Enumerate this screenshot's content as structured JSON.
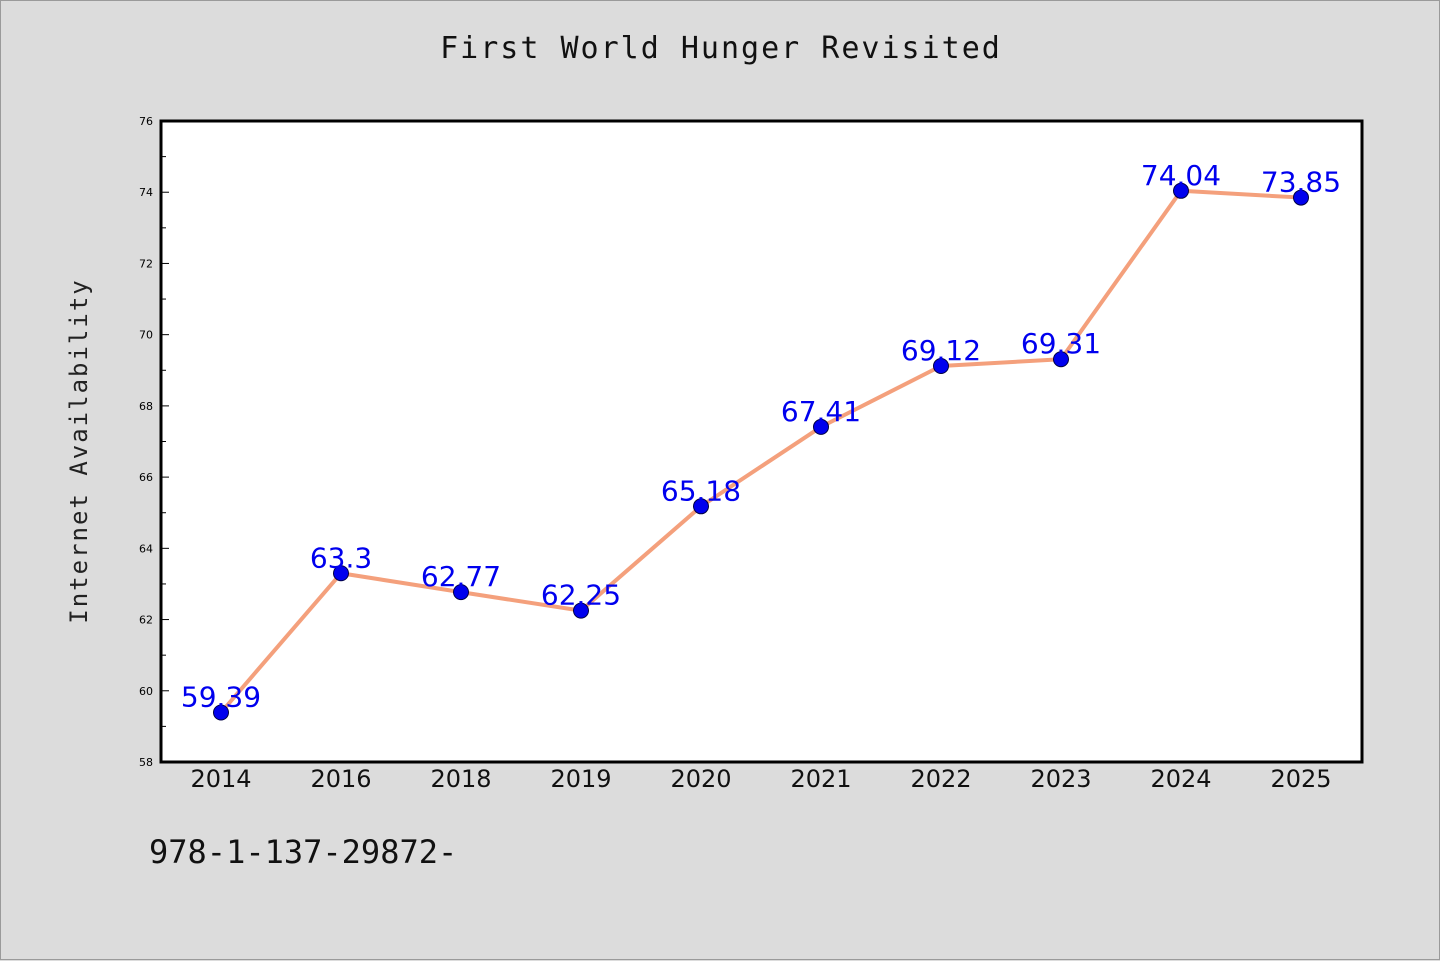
{
  "chart_data": {
    "type": "line",
    "title": "First World Hunger Revisited",
    "xlabel": "",
    "ylabel": "Internet Availability",
    "categories": [
      "2014",
      "2016",
      "2018",
      "2019",
      "2020",
      "2021",
      "2022",
      "2023",
      "2024",
      "2025"
    ],
    "series": [
      {
        "values": [
          59.39,
          63.3,
          62.77,
          62.25,
          65.18,
          67.41,
          69.12,
          69.31,
          74.04,
          73.85
        ],
        "data_labels": [
          "59.39",
          "63.3",
          "62.77",
          "62.25",
          "65.18",
          "67.41",
          "69.12",
          "69.31",
          "74.04",
          "73.85"
        ],
        "line_color": "#f4a07c",
        "marker_color": "#0000ee",
        "label_color": "#0000ee"
      }
    ],
    "ylim": [
      58,
      76
    ],
    "yticks": [
      "58",
      "60",
      "62",
      "64",
      "66",
      "68",
      "70",
      "72",
      "74",
      "76"
    ],
    "grid": false,
    "legend": "none"
  },
  "footer": {
    "code": "978-1-137-29872-"
  },
  "colors": {
    "background": "#dcdcdc",
    "plot_background": "#ffffff",
    "axis": "#000000"
  }
}
